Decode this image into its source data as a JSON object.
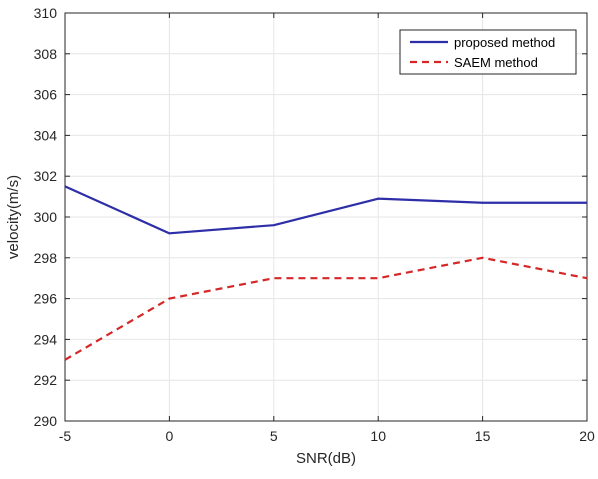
{
  "chart_data": {
    "type": "line",
    "title": "",
    "xlabel": "SNR(dB)",
    "ylabel": "velocity(m/s)",
    "x": [
      -5,
      0,
      5,
      10,
      15,
      20
    ],
    "xlim": [
      -5,
      20
    ],
    "ylim": [
      290,
      310
    ],
    "xticks": [
      "-5",
      "0",
      "5",
      "10",
      "15",
      "20"
    ],
    "yticks": [
      "290",
      "292",
      "294",
      "296",
      "298",
      "300",
      "302",
      "304",
      "306",
      "308",
      "310"
    ],
    "grid": true,
    "legend_position": "top-right",
    "series": [
      {
        "name": "proposed method",
        "values": [
          301.5,
          299.2,
          299.6,
          300.9,
          300.7,
          300.7
        ],
        "color": "#2e2ea8",
        "style": "solid"
      },
      {
        "name": "SAEM method",
        "values": [
          293.0,
          296.0,
          297.0,
          297.0,
          298.0,
          297.0
        ],
        "color": "#d62728",
        "style": "dashed"
      }
    ]
  }
}
